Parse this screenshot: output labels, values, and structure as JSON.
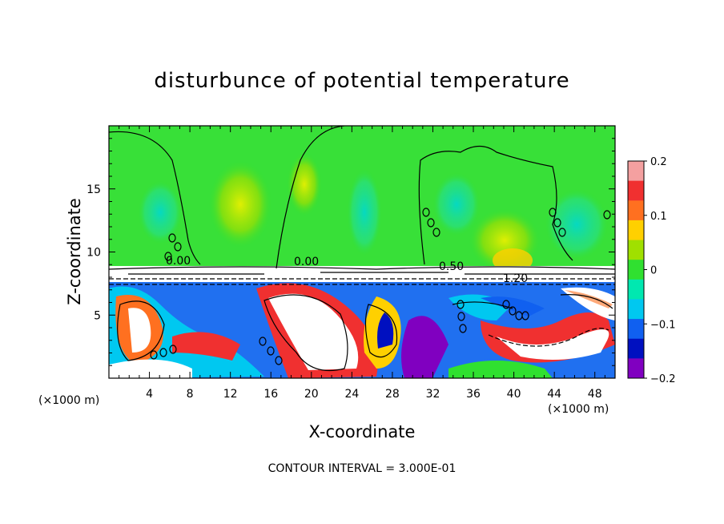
{
  "chart_data": {
    "type": "heatmap",
    "title": "disturbunce of potential temperature",
    "xlabel": "X-coordinate",
    "ylabel": "Z-coordinate",
    "x_unit_left": "(×1000 m)",
    "x_unit_right": "(×1000 m)",
    "xlim": [
      0,
      50
    ],
    "ylim": [
      0,
      20
    ],
    "x_ticks": [
      4,
      8,
      12,
      16,
      20,
      24,
      28,
      32,
      36,
      40,
      44,
      48
    ],
    "y_ticks": [
      5,
      10,
      15
    ],
    "colorbar": {
      "range": [
        -0.2,
        0.2
      ],
      "tick_values": [
        0.2,
        0.1,
        0,
        -0.1,
        -0.2
      ],
      "tick_labels": [
        "0.2",
        "0.1",
        "0",
        "−0.1",
        "−0.2"
      ],
      "colors": [
        "#f4a0a0",
        "#f03030",
        "#ff7020",
        "#ffd000",
        "#a0e000",
        "#30e030",
        "#00e8b0",
        "#00c8f0",
        "#1060f0",
        "#0010c0",
        "#8000c0"
      ]
    },
    "contour_labels": [
      "0.00",
      "0.00",
      "0.50",
      "1.20"
    ],
    "contour_interval_text": "CONTOUR INTERVAL = 3.000E-01",
    "notes": "Upper layer (z > ~8.5 km) near-zero disturbance (green, patches of cyan/yellow); lower layer (z < ~7.5 km) strong mixed positive/negative disturbance with swirling structures."
  }
}
